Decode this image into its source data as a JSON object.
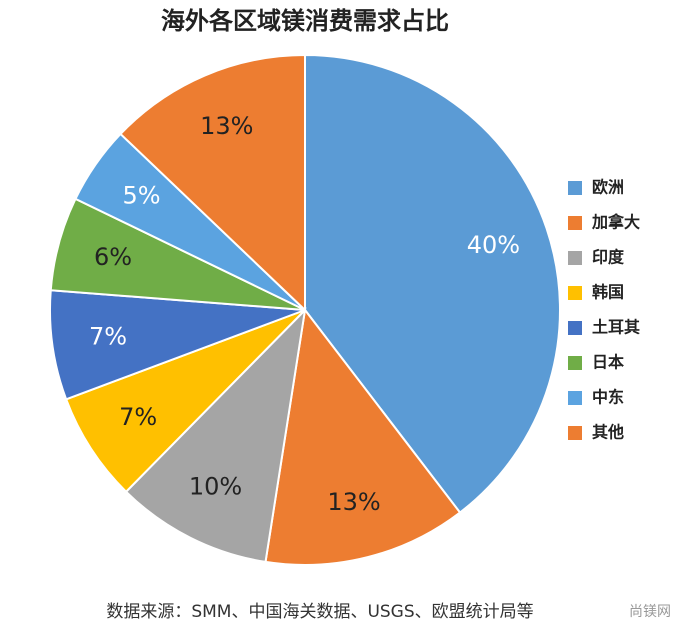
{
  "chart_data": {
    "type": "pie",
    "title": "海外各区域镁消费需求占比",
    "categories": [
      "欧洲",
      "加拿大",
      "印度",
      "韩国",
      "土耳其",
      "日本",
      "中东",
      "其他"
    ],
    "values": [
      40,
      13,
      10,
      7,
      7,
      6,
      5,
      13
    ],
    "value_labels": [
      "40%",
      "13%",
      "10%",
      "7%",
      "7%",
      "6%",
      "5%",
      "13%"
    ],
    "colors": [
      "#5b9bd5",
      "#ed7d31",
      "#a5a5a5",
      "#ffc000",
      "#4472c4",
      "#70ad47",
      "#5ba3e0",
      "#ed7d31"
    ],
    "label_colors": [
      "#ffffff",
      "#222222",
      "#222222",
      "#222222",
      "#ffffff",
      "#222222",
      "#ffffff",
      "#222222"
    ],
    "legend": "right",
    "source": "数据来源：SMM、中国海关数据、USGS、欧盟统计局等",
    "watermark": "尚镁网"
  }
}
